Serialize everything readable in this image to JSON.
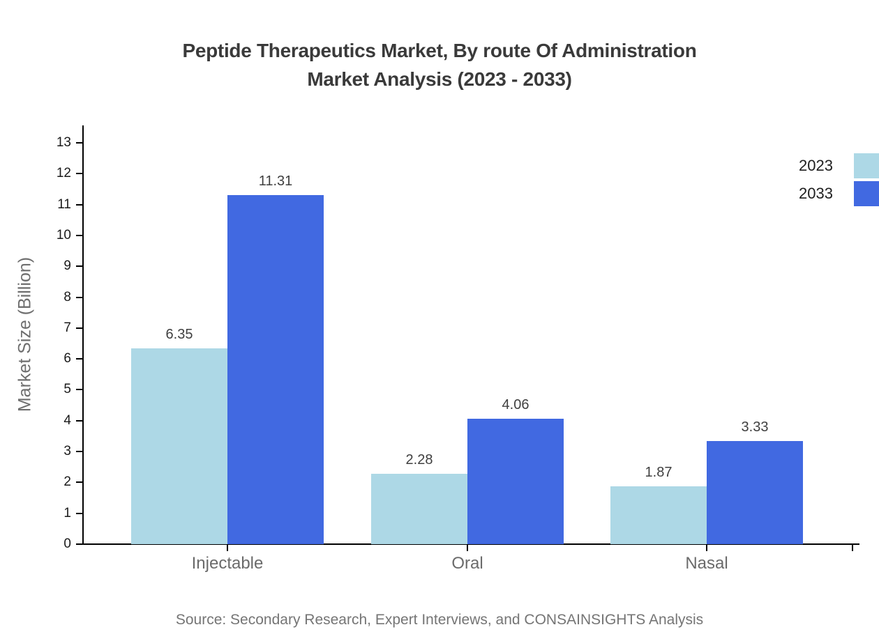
{
  "title": {
    "line1": "Peptide Therapeutics Market, By route Of Administration",
    "line2": "Market Analysis (2023 - 2033)"
  },
  "source": "Source: Secondary Research, Expert Interviews, and CONSAINSIGHTS Analysis",
  "chart_data": {
    "type": "bar",
    "title": "Peptide Therapeutics Market, By route Of Administration Market Analysis (2023 - 2033)",
    "categories": [
      "Injectable",
      "Oral",
      "Nasal"
    ],
    "series": [
      {
        "name": "2023",
        "color": "#ADD8E6",
        "values": [
          6.35,
          2.28,
          1.87
        ]
      },
      {
        "name": "2033",
        "color": "#4169E1",
        "values": [
          11.31,
          4.06,
          3.33
        ]
      }
    ],
    "xlabel": "",
    "ylabel": "Market Size (Billion)",
    "ylim": [
      0,
      13
    ],
    "ytick_step": 1,
    "grid": false,
    "legend_position": "top-right",
    "value_labels": true,
    "value_label_format": "two-decimals"
  },
  "legend": {
    "items": [
      {
        "label": "2023",
        "color": "#ADD8E6"
      },
      {
        "label": "2033",
        "color": "#4169E1"
      }
    ]
  },
  "colors": {
    "series_2023": "#ADD8E6",
    "series_2033": "#4169E1",
    "axis": "#000000",
    "title_text": "#3a3a3a",
    "category_text": "#6b6b6b",
    "value_text": "#3f3f3f",
    "muted_text": "#757575"
  }
}
